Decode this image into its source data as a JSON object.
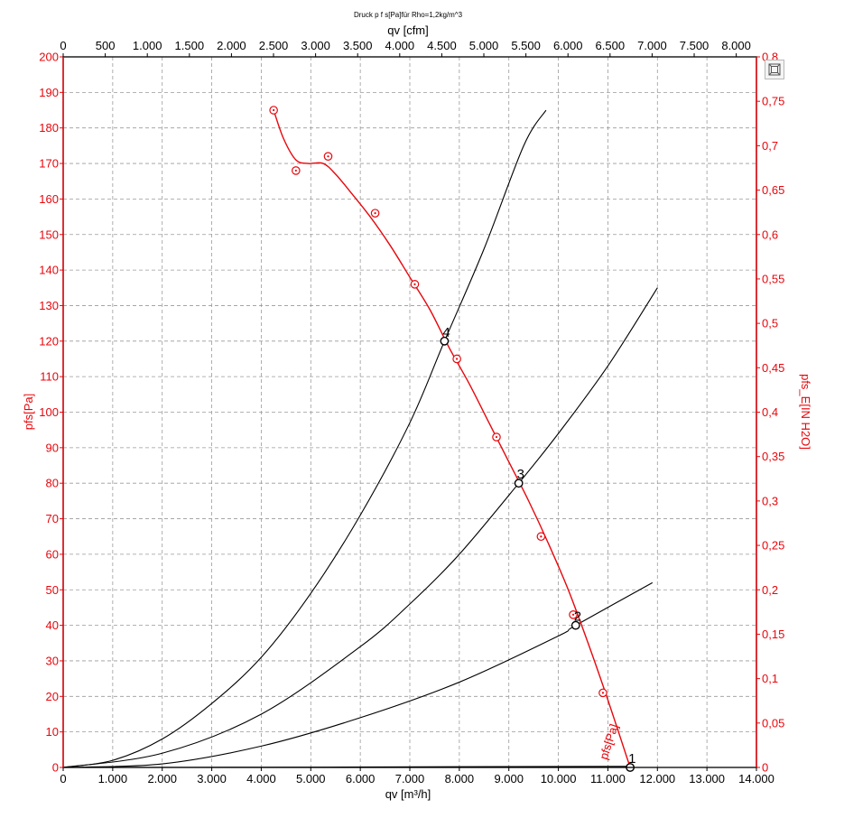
{
  "chart_data": {
    "type": "line",
    "title": "Druck p f s[Pa]für Rho=1,2kg/m^3",
    "xlabel": "qv [m³/h]",
    "x2label": "qv [cfm]",
    "ylabel": "pfs[Pa]",
    "y2label": "pfs_E[IN H2O]",
    "xlim": [
      0,
      14000
    ],
    "ylim": [
      0,
      200
    ],
    "x2lim": [
      0,
      8240
    ],
    "y2lim": [
      0,
      0.8
    ],
    "grid": true,
    "x_ticks": [
      0,
      1000,
      2000,
      3000,
      4000,
      5000,
      6000,
      7000,
      8000,
      9000,
      10000,
      11000,
      12000,
      13000,
      14000
    ],
    "x_tick_labels": [
      "0",
      "1.000",
      "2.000",
      "3.000",
      "4.000",
      "5.000",
      "6.000",
      "7.000",
      "8.000",
      "9.000",
      "10.000",
      "11.000",
      "12.000",
      "13.000",
      "14.000"
    ],
    "y_ticks": [
      0,
      10,
      20,
      30,
      40,
      50,
      60,
      70,
      80,
      90,
      100,
      110,
      120,
      130,
      140,
      150,
      160,
      170,
      180,
      190,
      200
    ],
    "y_tick_labels": [
      "0",
      "10",
      "20",
      "30",
      "40",
      "50",
      "60",
      "70",
      "80",
      "90",
      "100",
      "110",
      "120",
      "130",
      "140",
      "150",
      "160",
      "170",
      "180",
      "190",
      "200"
    ],
    "x2_ticks": [
      0,
      500,
      1000,
      1500,
      2000,
      2500,
      3000,
      3500,
      4000,
      4500,
      5000,
      5500,
      6000,
      6500,
      7000,
      7500,
      8000
    ],
    "x2_tick_labels": [
      "0",
      "500",
      "1.000",
      "1.500",
      "2.000",
      "2.500",
      "3.000",
      "3.500",
      "4.000",
      "4.500",
      "5.000",
      "5.500",
      "6.000",
      "6.500",
      "7.000",
      "7.500",
      "8.000"
    ],
    "y2_ticks": [
      0,
      0.05,
      0.1,
      0.15,
      0.2,
      0.25,
      0.3,
      0.35,
      0.4,
      0.45,
      0.5,
      0.55,
      0.6,
      0.65,
      0.7,
      0.75,
      0.8
    ],
    "y2_tick_labels": [
      "0",
      "0,05",
      "0,1",
      "0,15",
      "0,2",
      "0,25",
      "0,3",
      "0,35",
      "0,4",
      "0,45",
      "0,5",
      "0,55",
      "0,6",
      "0,65",
      "0,7",
      "0,75",
      "0,8"
    ],
    "fan_curve": {
      "name": "pfs[Pa]",
      "color": "#e8060c",
      "x": [
        4250,
        4450,
        4700,
        4950,
        5250,
        5500,
        5800,
        6200,
        6600,
        7000,
        7400,
        7800,
        8200,
        8600,
        9000,
        9400,
        9800,
        10200,
        10600,
        11000,
        11450
      ],
      "y": [
        185,
        177,
        171,
        170,
        170,
        167,
        162,
        155,
        147,
        138,
        129,
        118,
        108,
        97,
        86,
        75,
        63,
        50,
        35,
        19,
        0
      ]
    },
    "fan_markers": {
      "x": [
        4250,
        4700,
        5350,
        6300,
        7100,
        7950,
        8750,
        9650,
        10300,
        10900,
        11450
      ],
      "y": [
        185,
        168,
        172,
        156,
        136,
        115,
        93,
        65,
        43,
        21,
        0
      ]
    },
    "system_curves": [
      {
        "x": [
          0,
          1000,
          2000,
          3000,
          4000,
          5000,
          6000,
          7000,
          7700,
          8500,
          9300,
          9750
        ],
        "y": [
          0,
          2,
          8,
          18,
          31,
          49,
          71,
          97,
          120,
          146,
          175,
          185
        ]
      },
      {
        "x": [
          0,
          2000,
          4000,
          6000,
          7000,
          8000,
          9200,
          10000,
          11000,
          12000
        ],
        "y": [
          0,
          4,
          15,
          34,
          46,
          60,
          80,
          94,
          113,
          135
        ]
      },
      {
        "x": [
          0,
          2000,
          4000,
          6000,
          8000,
          10000,
          10350,
          11900
        ],
        "y": [
          0,
          1,
          6,
          14,
          24,
          37,
          40,
          52
        ]
      },
      {
        "x": [
          0,
          4000,
          8000,
          11450
        ],
        "y": [
          0,
          0.05,
          0.2,
          0.3
        ]
      }
    ],
    "operating_points": [
      {
        "label": "1",
        "x": 11450,
        "y": 0
      },
      {
        "label": "2",
        "x": 10350,
        "y": 40
      },
      {
        "label": "3",
        "x": 9200,
        "y": 80
      },
      {
        "label": "4",
        "x": 7700,
        "y": 120
      }
    ],
    "curve_label": "pfs[Pa]"
  }
}
